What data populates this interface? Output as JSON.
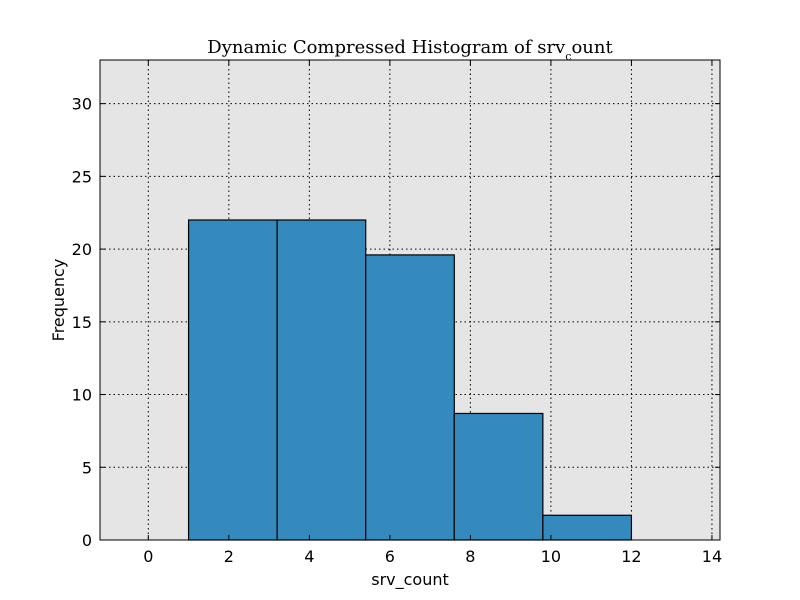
{
  "chart_data": {
    "type": "bar",
    "title_main": "Dynamic Compressed Histogram of srv",
    "title_sub": "c",
    "title_tail": "ount",
    "xlabel": "srv_count",
    "ylabel": "Frequency",
    "xlim": [
      -1.2,
      14.2
    ],
    "ylim": [
      0,
      33
    ],
    "xticks": [
      0,
      2,
      4,
      6,
      8,
      10,
      12,
      14
    ],
    "yticks": [
      0,
      5,
      10,
      15,
      20,
      25,
      30
    ],
    "grid": true,
    "bins": [
      {
        "x0": 1.0,
        "x1": 3.2,
        "value": 22.0
      },
      {
        "x0": 3.2,
        "x1": 5.4,
        "value": 22.0
      },
      {
        "x0": 5.4,
        "x1": 7.6,
        "value": 19.6
      },
      {
        "x0": 7.6,
        "x1": 9.8,
        "value": 8.7
      },
      {
        "x0": 9.8,
        "x1": 12.0,
        "value": 1.7
      }
    ],
    "colors": {
      "bar": "#348abd",
      "bar_edge": "#000000",
      "plot_bg": "#e5e5e5",
      "grid": "#000000"
    }
  }
}
